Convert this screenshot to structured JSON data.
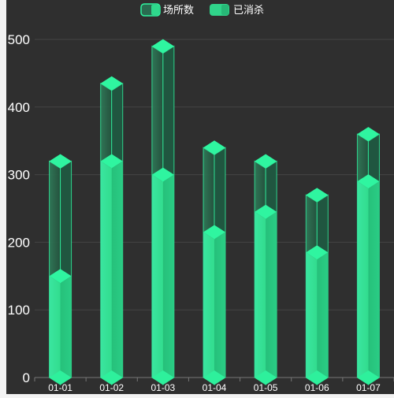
{
  "colors": {
    "background": "#2f2f2f",
    "outer_background": "#f3f3f3",
    "grid": "#444444",
    "text": "#ffffff",
    "accent": "#2ff5a0",
    "fill_front": "#32dc8e",
    "fill_side": "#26c07a"
  },
  "chart_data": {
    "type": "bar",
    "categories": [
      "01-01",
      "01-02",
      "01-03",
      "01-04",
      "01-05",
      "01-06",
      "01-07"
    ],
    "series": [
      {
        "name": "场所数",
        "values": [
          320,
          435,
          490,
          340,
          320,
          270,
          360
        ],
        "style": "outline"
      },
      {
        "name": "已消杀",
        "values": [
          150,
          320,
          300,
          215,
          245,
          185,
          290
        ],
        "style": "filled"
      }
    ],
    "ylim": [
      0,
      500
    ],
    "yticks": [
      "0",
      "100",
      "200",
      "300",
      "400",
      "500"
    ],
    "grid": true,
    "legend_position": "top-center",
    "bar_style": "3d-prism"
  }
}
